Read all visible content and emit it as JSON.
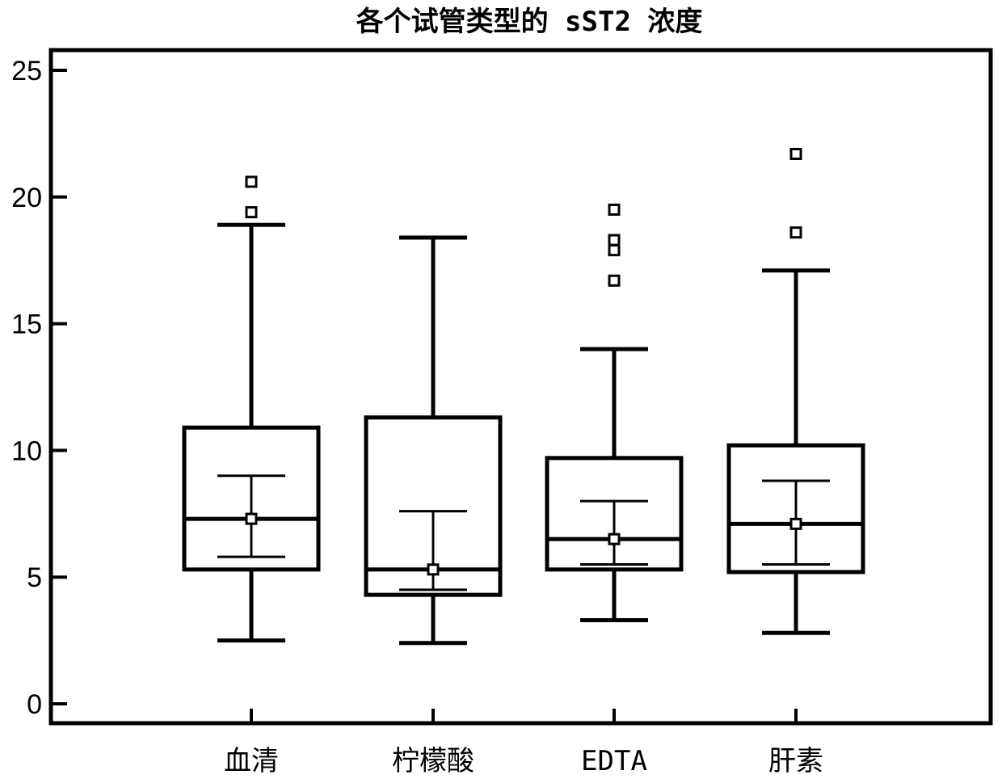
{
  "chart_data": {
    "type": "boxplot",
    "title": "各个试管类型的 sST2 浓度",
    "xlabel": "",
    "ylabel": "",
    "ylim": [
      -0.8,
      25.7
    ],
    "yticks": [
      0,
      5,
      10,
      15,
      20,
      25
    ],
    "categories": [
      "血清",
      "柠檬酸",
      "EDTA",
      "肝素"
    ],
    "boxes": [
      {
        "category": "血清",
        "whisker_low": 2.5,
        "q1": 5.3,
        "median": 7.3,
        "q3": 10.9,
        "whisker_high": 18.9,
        "mean": 7.3,
        "ci_low": 5.8,
        "ci_high": 9.0,
        "outliers": [
          19.4,
          20.6
        ]
      },
      {
        "category": "柠檬酸",
        "whisker_low": 2.4,
        "q1": 4.3,
        "median": 5.3,
        "q3": 11.3,
        "whisker_high": 18.4,
        "mean": 5.3,
        "ci_low": 4.5,
        "ci_high": 7.6,
        "outliers": []
      },
      {
        "category": "EDTA",
        "whisker_low": 3.3,
        "q1": 5.3,
        "median": 6.5,
        "q3": 9.7,
        "whisker_high": 14.0,
        "mean": 6.5,
        "ci_low": 5.5,
        "ci_high": 8.0,
        "outliers": [
          16.7,
          17.9,
          18.3,
          19.5
        ]
      },
      {
        "category": "肝素",
        "whisker_low": 2.8,
        "q1": 5.2,
        "median": 7.1,
        "q3": 10.2,
        "whisker_high": 17.1,
        "mean": 7.1,
        "ci_low": 5.5,
        "ci_high": 8.8,
        "outliers": [
          18.6,
          21.7
        ]
      }
    ],
    "grid": false,
    "legend": "none"
  }
}
